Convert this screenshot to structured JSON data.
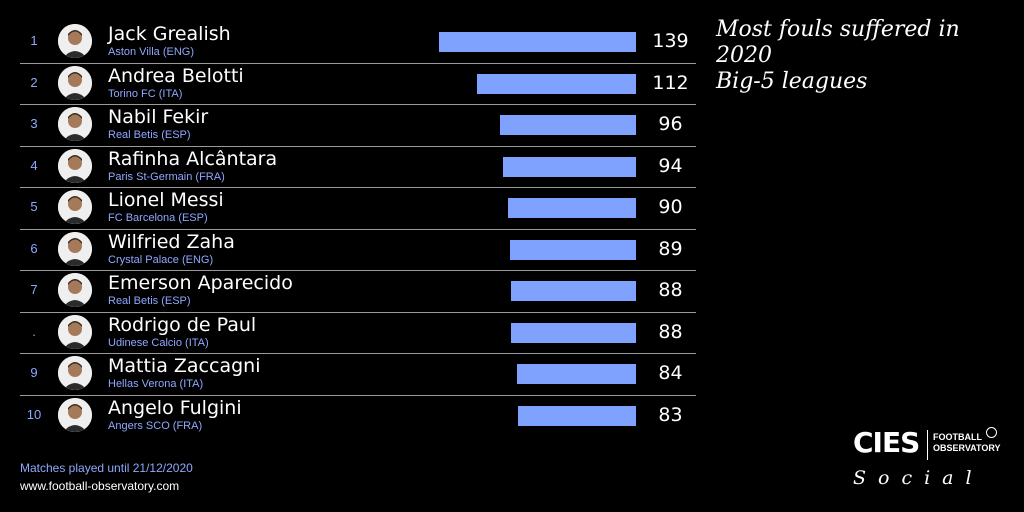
{
  "title_lines": [
    "Most fouls suffered in",
    "2020",
    "Big-5 leagues"
  ],
  "footer_note": "Matches played until 21/12/2020",
  "footer_url": "www.football-observatory.com",
  "logo": {
    "main": "CIES",
    "sub_line1": "FOOTBALL",
    "sub_line2": "OBSERVATORY"
  },
  "social_label": "Social",
  "colors": {
    "background": "#000000",
    "bar": "#7fa2ff",
    "rank_and_club": "#8fa8ff",
    "text": "#ffffff"
  },
  "chart_data": {
    "type": "bar",
    "orientation": "horizontal",
    "title": "Most fouls suffered in 2020 Big-5 leagues",
    "categories": [
      "Jack Grealish",
      "Andrea Belotti",
      "Nabil Fekir",
      "Rafinha Alcântara",
      "Lionel Messi",
      "Wilfried Zaha",
      "Emerson Aparecido",
      "Rodrigo de Paul",
      "Mattia Zaccagni",
      "Angelo Fulgini"
    ],
    "values": [
      139,
      112,
      96,
      94,
      90,
      89,
      88,
      88,
      84,
      83
    ],
    "rows": [
      {
        "rank": "1",
        "name": "Jack Grealish",
        "club": "Aston Villa (ENG)",
        "value": 139
      },
      {
        "rank": "2",
        "name": "Andrea Belotti",
        "club": "Torino FC (ITA)",
        "value": 112
      },
      {
        "rank": "3",
        "name": "Nabil Fekir",
        "club": "Real Betis (ESP)",
        "value": 96
      },
      {
        "rank": "4",
        "name": "Rafinha Alcântara",
        "club": "Paris St-Germain (FRA)",
        "value": 94
      },
      {
        "rank": "5",
        "name": "Lionel Messi",
        "club": "FC Barcelona (ESP)",
        "value": 90
      },
      {
        "rank": "6",
        "name": "Wilfried Zaha",
        "club": "Crystal Palace (ENG)",
        "value": 89
      },
      {
        "rank": "7",
        "name": "Emerson Aparecido",
        "club": "Real Betis (ESP)",
        "value": 88
      },
      {
        "rank": ".",
        "name": "Rodrigo de Paul",
        "club": "Udinese Calcio (ITA)",
        "value": 88
      },
      {
        "rank": "9",
        "name": "Mattia Zaccagni",
        "club": "Hellas Verona (ITA)",
        "value": 84
      },
      {
        "rank": "10",
        "name": "Angelo Fulgini",
        "club": "Angers SCO (FRA)",
        "value": 83
      }
    ],
    "xlim": [
      0,
      139
    ],
    "grid": false
  }
}
